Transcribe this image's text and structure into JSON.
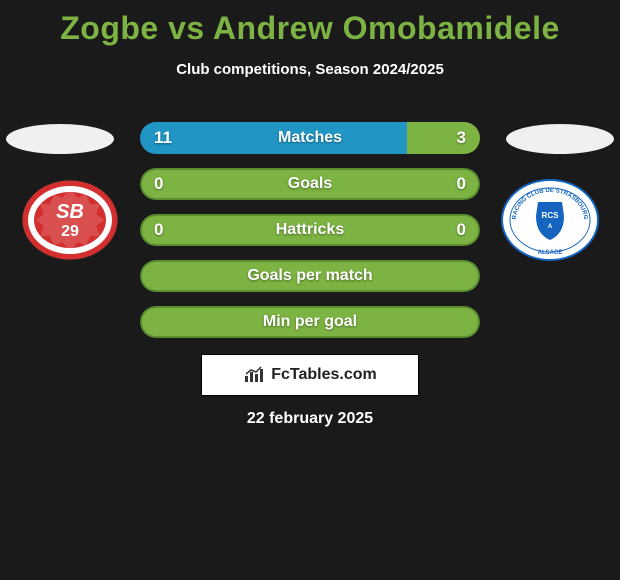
{
  "title": "Zogbe vs Andrew Omobamidele",
  "subtitle": "Club competitions, Season 2024/2025",
  "date": "22 february 2025",
  "brand": "FcTables.com",
  "colors": {
    "background": "#1a1a1a",
    "title": "#7cb342",
    "text": "#ffffff",
    "bar_left_fill": "#2196c4",
    "bar_right_fill": "#7cb342",
    "bar_neutral": "#7cb342",
    "bar_neutral_border": "#5a8f2f",
    "ellipse": "#f0f0f0"
  },
  "bars": [
    {
      "label": "Matches",
      "left_val": "11",
      "right_val": "3",
      "left_pct": 78.6,
      "right_pct": 21.4,
      "left_color": "#2196c4",
      "right_color": "#7cb342",
      "split": true
    },
    {
      "label": "Goals",
      "left_val": "0",
      "right_val": "0",
      "left_pct": 50,
      "right_pct": 50,
      "left_color": "#7cb342",
      "right_color": "#7cb342",
      "split": false
    },
    {
      "label": "Hattricks",
      "left_val": "0",
      "right_val": "0",
      "left_pct": 50,
      "right_pct": 50,
      "left_color": "#7cb342",
      "right_color": "#7cb342",
      "split": false
    },
    {
      "label": "Goals per match",
      "left_val": "",
      "right_val": "",
      "left_pct": 0,
      "right_pct": 0,
      "left_color": "#7cb342",
      "right_color": "#7cb342",
      "split": false
    },
    {
      "label": "Min per goal",
      "left_val": "",
      "right_val": "",
      "left_pct": 0,
      "right_pct": 0,
      "left_color": "#7cb342",
      "right_color": "#7cb342",
      "split": false
    }
  ],
  "club_left": {
    "name": "Stade Brestois 29",
    "primary": "#d32f2f",
    "secondary": "#ffffff",
    "text": "SB",
    "subtext": "29"
  },
  "club_right": {
    "name": "RC Strasbourg Alsace",
    "primary": "#1565c0",
    "secondary": "#ffffff",
    "ring_text": "RACING CLUB ALSACE"
  }
}
